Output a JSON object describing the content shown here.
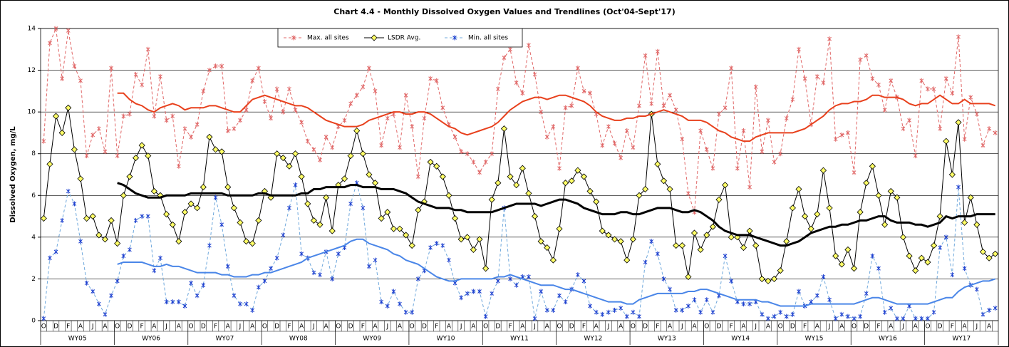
{
  "chart_data": {
    "type": "line",
    "title": "Chart 4.4 - Monthly Dissolved Oxygen Values and Trendlines (Oct'04-Sept'17)",
    "y_label": "Dissolved Oxygen, mg/L",
    "categories": [
      "O",
      null,
      "D",
      null,
      "F",
      null,
      "A",
      null,
      "J",
      null,
      "A",
      null,
      "O",
      null,
      "D",
      null,
      "F",
      null,
      "A",
      null,
      "J",
      null,
      "A",
      null,
      "O",
      null,
      "D",
      null,
      "F",
      null,
      "A",
      null,
      "J",
      null,
      "A",
      null,
      "O",
      null,
      "D",
      null,
      "F",
      null,
      "A",
      null,
      "J",
      null,
      "A",
      null,
      "O",
      null,
      "D",
      null,
      "F",
      null,
      "A",
      null,
      "J",
      null,
      "A",
      null,
      "O",
      null,
      "D",
      null,
      "F",
      null,
      "A",
      null,
      "J",
      null,
      "A",
      null,
      "O",
      null,
      "D",
      null,
      "F",
      null,
      "A",
      null,
      "J",
      null,
      "A",
      null,
      "O",
      null,
      "D",
      null,
      "F",
      null,
      "A",
      null,
      "J",
      null,
      "A",
      null,
      "O",
      null,
      "D",
      null,
      "F",
      null,
      "A",
      null,
      "J",
      null,
      "A",
      null,
      "O",
      null,
      "D",
      null,
      "F",
      null,
      "A",
      null,
      "J",
      null,
      "A",
      null,
      "O",
      null,
      "D",
      null,
      "F",
      null,
      "A",
      null,
      "J",
      null,
      "A",
      null,
      "O",
      null,
      "D",
      null,
      "F",
      null,
      "A",
      null,
      "J",
      null,
      "A",
      null,
      "O",
      null,
      "D",
      null,
      "F",
      null,
      "A",
      null,
      "J",
      null,
      "A",
      null
    ],
    "group_labels": [
      "WY05",
      "WY06",
      "WY07",
      "WY08",
      "WY09",
      "WY10",
      "WY11",
      "WY12",
      "WY13",
      "WY14",
      "WY15",
      "WY16",
      "WY17"
    ],
    "ylim": [
      0,
      14
    ],
    "yticks": [
      0,
      2,
      4,
      6,
      8,
      10,
      12,
      14
    ],
    "grid": true,
    "legend": "top",
    "series": [
      {
        "name": "Max. all sites",
        "color": "#e06666",
        "line": "dashed",
        "marker": "star",
        "width": 1,
        "values": [
          8.6,
          13.3,
          14.0,
          11.6,
          13.9,
          12.2,
          11.5,
          7.9,
          8.9,
          9.2,
          8.1,
          12.1,
          7.9,
          9.8,
          9.9,
          11.8,
          11.3,
          13.0,
          9.8,
          11.7,
          9.6,
          9.8,
          7.4,
          9.2,
          8.8,
          9.4,
          11.0,
          12.0,
          12.2,
          12.2,
          9.1,
          9.2,
          9.6,
          10.1,
          11.5,
          12.1,
          10.5,
          9.7,
          11.1,
          10.0,
          11.1,
          10.1,
          9.5,
          8.6,
          8.2,
          7.7,
          8.8,
          8.3,
          9.3,
          9.6,
          10.4,
          10.8,
          11.2,
          12.1,
          11.0,
          8.4,
          9.7,
          9.9,
          8.3,
          10.8,
          9.3,
          6.9,
          9.7,
          11.6,
          11.5,
          10.2,
          9.4,
          8.8,
          8.1,
          8.0,
          7.6,
          7.1,
          7.6,
          8.0,
          11.1,
          12.6,
          13.0,
          11.4,
          10.9,
          13.2,
          11.8,
          10.0,
          8.8,
          9.3,
          7.3,
          10.2,
          10.3,
          12.1,
          11.0,
          10.9,
          9.9,
          8.4,
          9.3,
          8.5,
          7.8,
          9.1,
          8.3,
          10.3,
          12.7,
          10.4,
          12.9,
          10.3,
          10.8,
          10.1,
          8.7,
          6.1,
          5.2,
          9.1,
          8.2,
          7.3,
          9.9,
          10.2,
          12.1,
          7.3,
          9.1,
          6.4,
          11.2,
          8.1,
          9.6,
          7.6,
          8.0,
          9.7,
          10.6,
          13.0,
          11.6,
          9.4,
          11.7,
          11.4,
          13.5,
          8.7,
          8.9,
          9.0,
          7.1,
          12.5,
          12.7,
          11.6,
          11.3,
          10.1,
          11.5,
          10.7,
          9.2,
          9.6,
          7.9,
          11.5,
          11.1,
          11.1,
          9.2,
          11.6,
          10.9,
          13.6,
          8.7,
          10.7,
          9.9,
          8.4,
          9.2,
          9.0
        ]
      },
      {
        "name": "LSDR Avg.",
        "color": "#000000",
        "line": "solid",
        "marker": "diamond",
        "marker_color": "#ffff66",
        "width": 1,
        "values": [
          4.9,
          7.5,
          9.8,
          9.0,
          10.2,
          8.2,
          6.8,
          4.9,
          5.0,
          4.1,
          3.9,
          4.8,
          3.7,
          6.0,
          6.9,
          7.8,
          8.4,
          7.9,
          6.2,
          6.0,
          5.1,
          4.6,
          3.8,
          5.2,
          5.6,
          5.4,
          6.4,
          8.8,
          8.2,
          8.1,
          6.4,
          5.4,
          4.7,
          3.8,
          3.7,
          4.8,
          6.2,
          5.9,
          8.0,
          7.8,
          7.4,
          8.0,
          6.9,
          5.6,
          4.8,
          4.6,
          5.9,
          4.3,
          6.5,
          6.8,
          7.9,
          9.1,
          8.0,
          7.0,
          6.6,
          4.9,
          5.2,
          4.4,
          4.4,
          4.1,
          3.6,
          5.3,
          5.7,
          7.6,
          7.4,
          6.9,
          6.0,
          4.9,
          3.9,
          4.0,
          3.4,
          3.9,
          2.5,
          5.8,
          6.6,
          9.2,
          6.9,
          6.5,
          7.3,
          6.1,
          5.0,
          3.8,
          3.5,
          2.9,
          4.4,
          6.6,
          6.7,
          7.2,
          6.9,
          6.2,
          5.7,
          4.3,
          4.1,
          3.9,
          3.8,
          2.9,
          3.9,
          6.0,
          6.3,
          9.9,
          7.5,
          6.7,
          6.3,
          3.6,
          3.6,
          2.1,
          4.2,
          3.4,
          4.1,
          4.5,
          5.8,
          6.5,
          4.0,
          4.0,
          3.5,
          4.3,
          3.6,
          2.0,
          1.9,
          2.0,
          2.4,
          3.8,
          5.4,
          6.3,
          5.0,
          4.4,
          5.1,
          7.2,
          5.4,
          3.1,
          2.7,
          3.4,
          2.5,
          5.2,
          6.6,
          7.4,
          6.0,
          4.6,
          6.2,
          5.9,
          4.0,
          3.1,
          2.4,
          3.0,
          2.8,
          3.6,
          5.0,
          8.6,
          7.0,
          9.5,
          4.7,
          5.9,
          4.6,
          3.3,
          3.0,
          3.2
        ]
      },
      {
        "name": "Min. all sites",
        "color": "#6fa8dc",
        "line": "dashed",
        "marker": "star",
        "marker_color": "#1c3fcf",
        "width": 1,
        "values": [
          0.1,
          3.0,
          3.3,
          4.8,
          6.2,
          5.6,
          3.8,
          1.8,
          1.4,
          0.8,
          0.3,
          1.2,
          1.9,
          3.1,
          3.4,
          4.8,
          5.0,
          5.0,
          2.4,
          3.0,
          0.9,
          0.9,
          0.9,
          0.7,
          1.8,
          1.2,
          1.7,
          3.6,
          5.9,
          4.6,
          2.6,
          1.2,
          0.8,
          0.8,
          0.5,
          1.6,
          1.9,
          2.5,
          3.0,
          4.1,
          5.4,
          6.5,
          3.2,
          3.0,
          2.3,
          2.2,
          3.3,
          2.0,
          3.2,
          3.5,
          5.6,
          6.6,
          5.4,
          2.6,
          2.9,
          0.9,
          0.7,
          1.4,
          0.8,
          0.4,
          0.4,
          2.0,
          2.4,
          3.5,
          3.7,
          3.6,
          2.9,
          1.8,
          1.1,
          1.3,
          1.4,
          1.4,
          0.2,
          1.3,
          1.9,
          5.4,
          2.0,
          1.7,
          2.1,
          2.1,
          0.1,
          1.4,
          0.5,
          0.5,
          1.2,
          0.9,
          1.5,
          2.2,
          1.9,
          0.7,
          0.4,
          0.3,
          0.4,
          0.5,
          0.6,
          0.2,
          0.4,
          0.2,
          2.8,
          3.8,
          3.2,
          2.0,
          1.5,
          0.5,
          0.5,
          0.7,
          1.0,
          0.4,
          1.0,
          0.4,
          1.2,
          3.1,
          1.9,
          0.9,
          0.8,
          0.8,
          0.9,
          0.3,
          0.1,
          0.2,
          0.4,
          0.2,
          0.3,
          1.4,
          0.7,
          0.9,
          1.2,
          2.1,
          1.0,
          0.1,
          0.3,
          0.2,
          0.1,
          0.2,
          1.3,
          3.1,
          2.5,
          0.4,
          0.6,
          0.1,
          0.1,
          0.7,
          0.1,
          0.1,
          0.1,
          0.4,
          3.5,
          4.0,
          2.2,
          6.4,
          2.5,
          1.7,
          1.5,
          0.3,
          0.5,
          0.6
        ]
      },
      {
        "color": "#e8401c",
        "line": "solid",
        "width": 2,
        "values": [
          null,
          null,
          null,
          null,
          null,
          null,
          null,
          null,
          null,
          null,
          null,
          null,
          10.9,
          10.9,
          10.6,
          10.4,
          10.3,
          10.1,
          10.0,
          10.2,
          10.3,
          10.4,
          10.3,
          10.1,
          10.2,
          10.2,
          10.2,
          10.3,
          10.3,
          10.2,
          10.1,
          10.0,
          10.0,
          10.3,
          10.6,
          10.7,
          10.8,
          10.7,
          10.6,
          10.5,
          10.4,
          10.3,
          10.3,
          10.2,
          10.0,
          9.8,
          9.6,
          9.5,
          9.4,
          9.3,
          9.3,
          9.3,
          9.4,
          9.6,
          9.7,
          9.8,
          9.9,
          10.0,
          10.0,
          9.9,
          9.9,
          10.0,
          10.0,
          9.9,
          9.7,
          9.5,
          9.3,
          9.2,
          9.0,
          8.9,
          9.0,
          9.1,
          9.2,
          9.3,
          9.5,
          9.8,
          10.1,
          10.3,
          10.5,
          10.6,
          10.7,
          10.7,
          10.6,
          10.7,
          10.8,
          10.8,
          10.7,
          10.6,
          10.5,
          10.3,
          10.0,
          9.8,
          9.7,
          9.6,
          9.6,
          9.7,
          9.7,
          9.8,
          9.8,
          9.9,
          10.0,
          10.1,
          10.0,
          9.9,
          9.8,
          9.6,
          9.6,
          9.6,
          9.5,
          9.3,
          9.1,
          9.0,
          8.8,
          8.7,
          8.6,
          8.6,
          8.8,
          8.9,
          9.0,
          9.0,
          9.0,
          9.0,
          9.0,
          9.1,
          9.2,
          9.4,
          9.6,
          9.8,
          10.1,
          10.3,
          10.4,
          10.4,
          10.5,
          10.5,
          10.6,
          10.8,
          10.8,
          10.7,
          10.7,
          10.7,
          10.6,
          10.4,
          10.3,
          10.4,
          10.4,
          10.6,
          10.8,
          10.6,
          10.4,
          10.4,
          10.6,
          10.4,
          10.4,
          10.4,
          10.4,
          10.3
        ]
      },
      {
        "color": "#000000",
        "line": "solid",
        "width": 3,
        "values": [
          null,
          null,
          null,
          null,
          null,
          null,
          null,
          null,
          null,
          null,
          null,
          null,
          6.6,
          6.5,
          6.3,
          6.1,
          6.0,
          5.9,
          5.9,
          5.9,
          6.0,
          6.0,
          6.0,
          6.0,
          6.1,
          6.1,
          6.1,
          6.1,
          6.1,
          6.1,
          6.0,
          6.0,
          6.0,
          6.0,
          6.0,
          6.1,
          6.1,
          6.0,
          6.0,
          6.0,
          6.0,
          6.0,
          6.1,
          6.1,
          6.3,
          6.3,
          6.4,
          6.4,
          6.4,
          6.4,
          6.5,
          6.5,
          6.4,
          6.4,
          6.4,
          6.3,
          6.3,
          6.3,
          6.2,
          6.1,
          5.9,
          5.7,
          5.6,
          5.5,
          5.4,
          5.4,
          5.4,
          5.3,
          5.3,
          5.2,
          5.2,
          5.2,
          5.2,
          5.2,
          5.3,
          5.4,
          5.5,
          5.6,
          5.6,
          5.6,
          5.6,
          5.5,
          5.6,
          5.7,
          5.8,
          5.8,
          5.7,
          5.6,
          5.4,
          5.3,
          5.2,
          5.1,
          5.1,
          5.1,
          5.2,
          5.2,
          5.1,
          5.1,
          5.2,
          5.3,
          5.4,
          5.4,
          5.4,
          5.3,
          5.2,
          5.2,
          5.3,
          5.2,
          5.0,
          4.8,
          4.5,
          4.3,
          4.2,
          4.1,
          4.1,
          4.1,
          4.0,
          3.9,
          3.8,
          3.7,
          3.6,
          3.6,
          3.7,
          3.8,
          4.0,
          4.2,
          4.3,
          4.4,
          4.5,
          4.5,
          4.6,
          4.6,
          4.7,
          4.8,
          4.8,
          4.9,
          5.0,
          5.0,
          4.8,
          4.7,
          4.7,
          4.7,
          4.6,
          4.6,
          4.5,
          4.6,
          4.7,
          5.0,
          4.9,
          5.0,
          5.0,
          5.0,
          5.1,
          5.1,
          5.1,
          5.1
        ]
      },
      {
        "color": "#4a86e8",
        "line": "solid",
        "width": 2,
        "values": [
          null,
          null,
          null,
          null,
          null,
          null,
          null,
          null,
          null,
          null,
          null,
          null,
          2.7,
          2.8,
          2.8,
          2.8,
          2.8,
          2.7,
          2.6,
          2.6,
          2.7,
          2.6,
          2.6,
          2.5,
          2.4,
          2.3,
          2.3,
          2.3,
          2.3,
          2.2,
          2.2,
          2.1,
          2.1,
          2.1,
          2.2,
          2.2,
          2.3,
          2.3,
          2.4,
          2.5,
          2.6,
          2.7,
          2.8,
          3.0,
          3.1,
          3.2,
          3.3,
          3.4,
          3.5,
          3.6,
          3.8,
          3.9,
          3.9,
          3.7,
          3.6,
          3.5,
          3.4,
          3.2,
          3.1,
          2.9,
          2.8,
          2.7,
          2.5,
          2.3,
          2.1,
          2.0,
          1.9,
          1.9,
          2.0,
          2.0,
          2.0,
          2.0,
          2.0,
          2.0,
          2.1,
          2.1,
          2.2,
          2.1,
          2.0,
          1.9,
          1.8,
          1.7,
          1.7,
          1.7,
          1.6,
          1.5,
          1.5,
          1.4,
          1.3,
          1.2,
          1.1,
          1.0,
          0.9,
          0.9,
          0.9,
          0.8,
          0.8,
          1.0,
          1.1,
          1.2,
          1.3,
          1.3,
          1.3,
          1.3,
          1.3,
          1.4,
          1.4,
          1.5,
          1.5,
          1.4,
          1.3,
          1.2,
          1.1,
          1.0,
          1.0,
          1.0,
          1.0,
          0.9,
          0.9,
          0.8,
          0.7,
          0.7,
          0.7,
          0.7,
          0.7,
          0.8,
          0.8,
          0.8,
          0.8,
          0.8,
          0.8,
          0.8,
          0.8,
          0.9,
          1.0,
          1.1,
          1.1,
          1.0,
          0.9,
          0.8,
          0.8,
          0.8,
          0.8,
          0.8,
          0.8,
          0.9,
          1.0,
          1.1,
          1.1,
          1.4,
          1.6,
          1.7,
          1.8,
          1.9,
          1.9,
          2.0
        ]
      }
    ]
  }
}
